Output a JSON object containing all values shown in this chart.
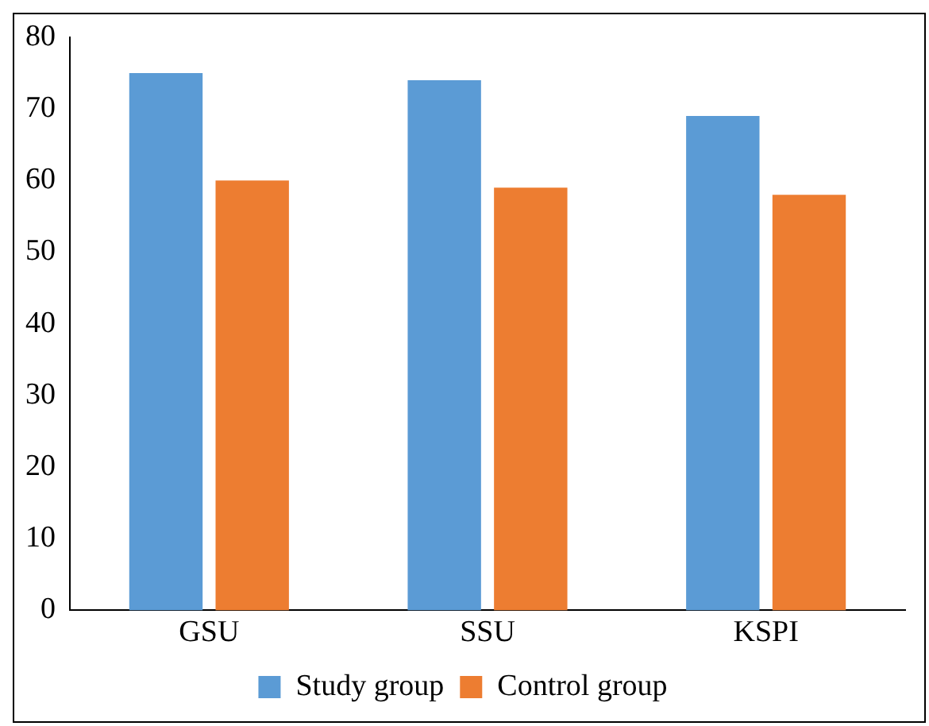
{
  "chart_data": {
    "type": "bar",
    "categories": [
      "GSU",
      "SSU",
      "KSPI"
    ],
    "series": [
      {
        "name": "Study group",
        "color": "#5b9bd5",
        "values": [
          75,
          74,
          69
        ]
      },
      {
        "name": "Control group",
        "color": "#ed7d31",
        "values": [
          60,
          59,
          58
        ]
      }
    ],
    "ylim": [
      0,
      80
    ],
    "yticks": [
      0,
      10,
      20,
      30,
      40,
      50,
      60,
      70,
      80
    ],
    "grid": false,
    "legend": "bottom"
  }
}
